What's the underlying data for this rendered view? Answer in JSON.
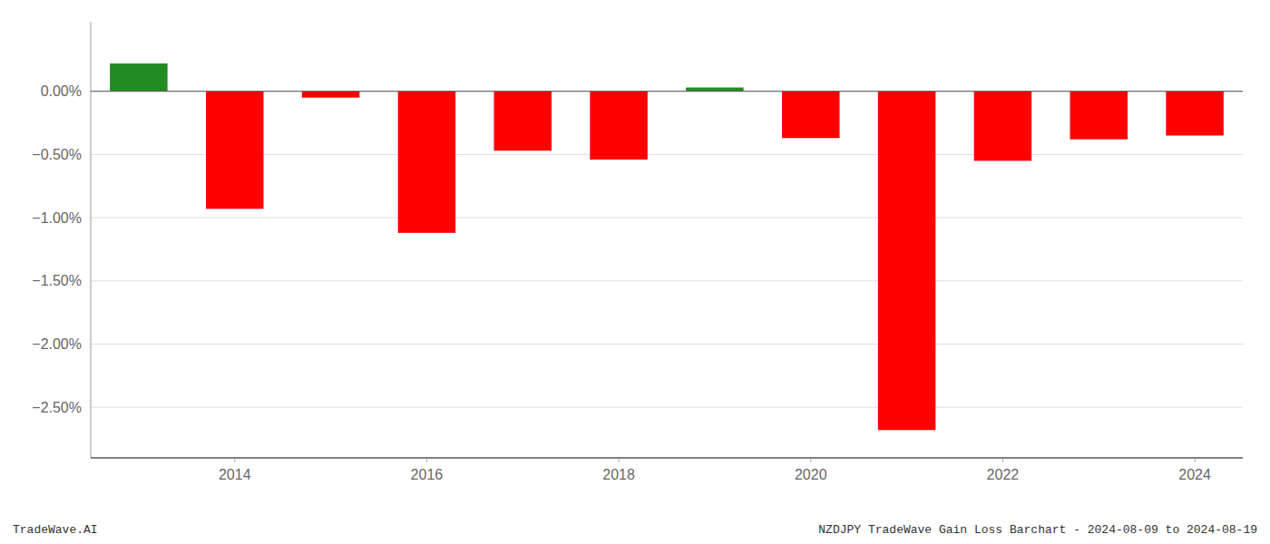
{
  "chart_data": {
    "type": "bar",
    "categories": [
      null,
      "2014",
      null,
      "2016",
      null,
      "2018",
      null,
      "2020",
      null,
      "2022",
      null,
      "2024"
    ],
    "values": [
      0.22,
      -0.93,
      -0.05,
      -1.12,
      -0.47,
      -0.54,
      0.03,
      -0.37,
      -2.68,
      -0.55,
      -0.38,
      -0.35
    ],
    "colors": [
      "#228B22",
      "#FF0000",
      "#FF0000",
      "#FF0000",
      "#FF0000",
      "#FF0000",
      "#228B22",
      "#FF0000",
      "#FF0000",
      "#FF0000",
      "#FF0000",
      "#FF0000"
    ],
    "ylim": [
      -2.9,
      0.55
    ],
    "yticks": [
      {
        "value": 0.0,
        "label": "0.00%"
      },
      {
        "value": -0.5,
        "label": "−0.50%"
      },
      {
        "value": -1.0,
        "label": "−1.00%"
      },
      {
        "value": -1.5,
        "label": "−1.50%"
      },
      {
        "value": -2.0,
        "label": "−2.00%"
      },
      {
        "value": -2.5,
        "label": "−2.50%"
      }
    ],
    "grid": true,
    "annotations": [
      "TradeWave.AI",
      "NZDJPY TradeWave Gain Loss Barchart - 2024-08-09 to 2024-08-19"
    ]
  }
}
